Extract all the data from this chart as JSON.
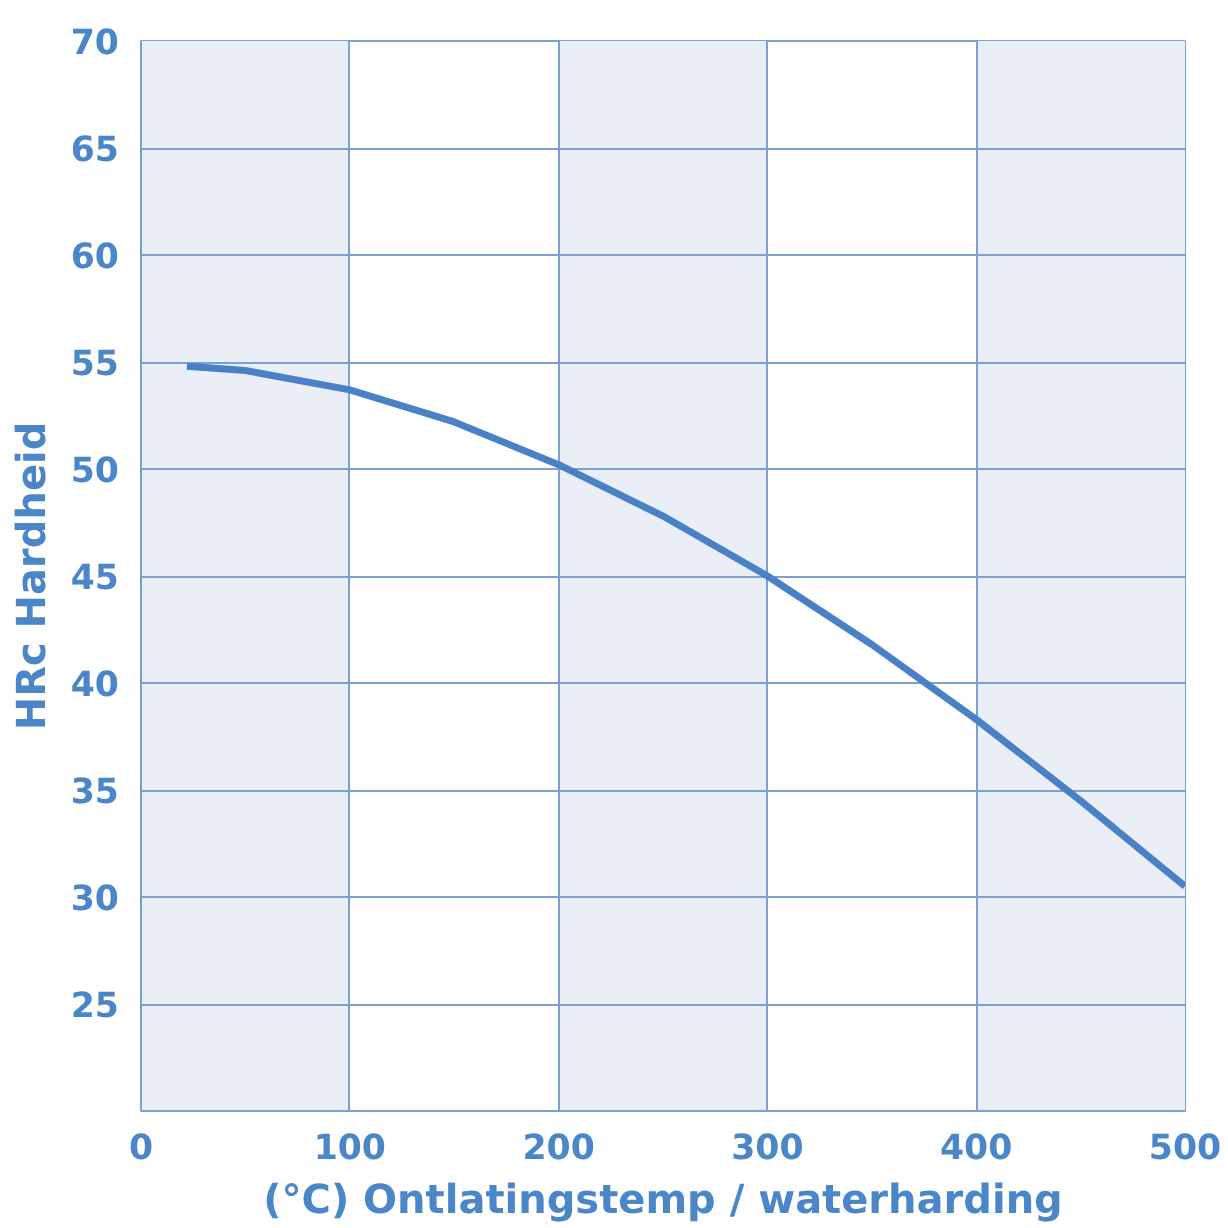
{
  "chart_data": {
    "type": "line",
    "xlabel": "(°C) Ontlatingstemp / waterharding",
    "ylabel": "HRc Hardheid",
    "x": [
      22,
      50,
      100,
      150,
      200,
      250,
      300,
      350,
      400,
      450,
      500
    ],
    "series": [
      {
        "color": "#4a80c6",
        "values": [
          54.8,
          54.6,
          53.7,
          52.2,
          50.2,
          47.8,
          45.0,
          41.8,
          38.3,
          34.5,
          30.5
        ]
      }
    ],
    "xlim": [
      0,
      500
    ],
    "ylim": [
      20,
      70
    ],
    "xticks": [
      0,
      100,
      200,
      300,
      400,
      500
    ],
    "yticks": [
      {
        "value": 20,
        "label": null
      },
      25,
      30,
      35,
      40,
      45,
      50,
      55,
      60,
      65,
      70
    ],
    "bands": [
      {
        "axis": "x",
        "from": 0,
        "to": 100,
        "color": "#e9eef7"
      },
      {
        "axis": "x",
        "from": 200,
        "to": 300,
        "color": "#e9eef7"
      },
      {
        "axis": "x",
        "from": 400,
        "to": 500,
        "color": "#e9eef7"
      }
    ],
    "grid": true,
    "marker": "none",
    "line_style": "solid"
  }
}
